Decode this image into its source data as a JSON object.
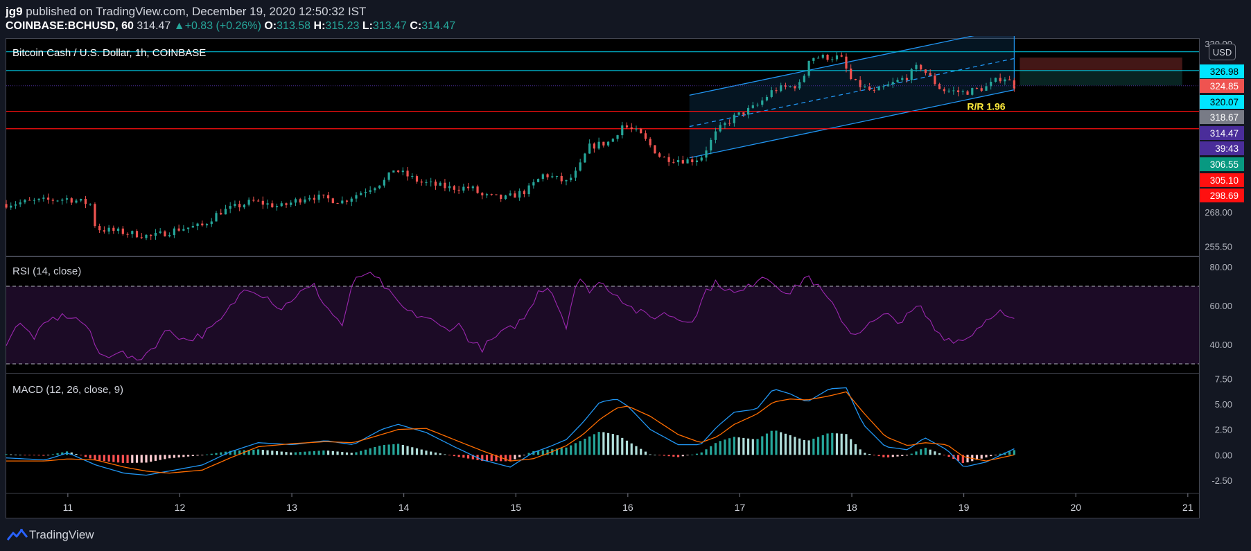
{
  "header": {
    "author": "jg9",
    "published_text": "published on TradingView.com, December 19, 2020 12:50:32 IST",
    "symbol": "COINBASE:BCHUSD, 60",
    "last": "314.47",
    "change": "+0.83 (+0.26%)",
    "o_label": "O:",
    "o_value": "313.58",
    "h_label": "H:",
    "h_value": "315.23",
    "l_label": "L:",
    "l_value": "313.47",
    "c_label": "C:",
    "c_value": "314.47"
  },
  "main_pane": {
    "title": "Bitcoin Cash / U.S. Dollar, 1h, COINBASE",
    "currency": "USD",
    "axis_ticks": [
      "330.00",
      "268.00",
      "255.50"
    ],
    "price_labels": [
      {
        "text": "326.98",
        "bg": "#00e5ff",
        "fg": "#000000"
      },
      {
        "text": "324.85",
        "bg": "#ef5350",
        "fg": "#ffffff"
      },
      {
        "text": "320.07",
        "bg": "#00e5ff",
        "fg": "#000000"
      },
      {
        "text": "318.67",
        "bg": "#787b86",
        "fg": "#ffffff"
      },
      {
        "text": "314.47",
        "bg": "#4a2d9a",
        "fg": "#ffffff"
      },
      {
        "text": "39:43",
        "bg": "#4a2d9a",
        "fg": "#ffffff"
      },
      {
        "text": "306.55",
        "bg": "#089981",
        "fg": "#ffffff"
      },
      {
        "text": "305.10",
        "bg": "#ff1010",
        "fg": "#ffffff"
      },
      {
        "text": "298.69",
        "bg": "#ff1010",
        "fg": "#ffffff"
      }
    ],
    "rr_label": "R/R 1.96"
  },
  "rsi_pane": {
    "title": "RSI (14, close)",
    "axis_ticks": [
      "80.00",
      "60.00",
      "40.00"
    ]
  },
  "macd_pane": {
    "title": "MACD (12, 26, close, 9)",
    "axis_ticks": [
      "7.50",
      "5.00",
      "2.50",
      "0.00",
      "-2.50"
    ]
  },
  "time_axis": {
    "ticks": [
      "11",
      "12",
      "13",
      "14",
      "15",
      "16",
      "17",
      "18",
      "19",
      "20",
      "21"
    ]
  },
  "footer": {
    "brand": "TradingView"
  },
  "colors": {
    "background": "#131722",
    "bull": "#26a69a",
    "bear": "#ef5350",
    "channel": "#2196f3",
    "support_cyan": "#00bcd4",
    "resistance_red": "#ff1010",
    "rsi": "#9c27b0",
    "macd": "#2196f3",
    "signal": "#ff6d00",
    "rr_text": "#ffeb3b"
  },
  "chart_data": [
    {
      "type": "candlestick",
      "title": "Bitcoin Cash / U.S. Dollar, 1h, COINBASE",
      "x_ticks": [
        "11",
        "12",
        "13",
        "14",
        "15",
        "16",
        "17",
        "18",
        "19",
        "20",
        "21"
      ],
      "x_domain_days": [
        10.45,
        21.1
      ],
      "ylim": [
        252,
        332
      ],
      "close_path": [
        {
          "day": 10.45,
          "close": 271
        },
        {
          "day": 10.7,
          "close": 272
        },
        {
          "day": 11.0,
          "close": 273
        },
        {
          "day": 11.2,
          "close": 271
        },
        {
          "day": 11.25,
          "close": 262
        },
        {
          "day": 11.6,
          "close": 260
        },
        {
          "day": 11.75,
          "close": 259
        },
        {
          "day": 12.0,
          "close": 262
        },
        {
          "day": 12.2,
          "close": 263
        },
        {
          "day": 12.35,
          "close": 268
        },
        {
          "day": 12.65,
          "close": 272
        },
        {
          "day": 12.9,
          "close": 270
        },
        {
          "day": 13.15,
          "close": 274
        },
        {
          "day": 13.45,
          "close": 272
        },
        {
          "day": 13.65,
          "close": 276
        },
        {
          "day": 13.85,
          "close": 280
        },
        {
          "day": 13.9,
          "close": 284
        },
        {
          "day": 14.15,
          "close": 279
        },
        {
          "day": 14.4,
          "close": 277
        },
        {
          "day": 14.6,
          "close": 277
        },
        {
          "day": 14.7,
          "close": 274
        },
        {
          "day": 14.9,
          "close": 273
        },
        {
          "day": 15.1,
          "close": 276
        },
        {
          "day": 15.25,
          "close": 282
        },
        {
          "day": 15.45,
          "close": 279
        },
        {
          "day": 15.55,
          "close": 283
        },
        {
          "day": 15.65,
          "close": 292
        },
        {
          "day": 15.85,
          "close": 294
        },
        {
          "day": 15.95,
          "close": 300
        },
        {
          "day": 16.1,
          "close": 297
        },
        {
          "day": 16.3,
          "close": 288
        },
        {
          "day": 16.55,
          "close": 287
        },
        {
          "day": 16.65,
          "close": 288
        },
        {
          "day": 16.8,
          "close": 298
        },
        {
          "day": 16.95,
          "close": 303
        },
        {
          "day": 17.15,
          "close": 307
        },
        {
          "day": 17.3,
          "close": 313
        },
        {
          "day": 17.55,
          "close": 315
        },
        {
          "day": 17.62,
          "close": 325
        },
        {
          "day": 17.9,
          "close": 325
        },
        {
          "day": 18.0,
          "close": 316
        },
        {
          "day": 18.2,
          "close": 312
        },
        {
          "day": 18.5,
          "close": 318
        },
        {
          "day": 18.6,
          "close": 322
        },
        {
          "day": 18.8,
          "close": 313
        },
        {
          "day": 19.0,
          "close": 312
        },
        {
          "day": 19.2,
          "close": 314
        },
        {
          "day": 19.35,
          "close": 318
        },
        {
          "day": 19.45,
          "close": 314.47
        }
      ],
      "horizontal_levels": [
        {
          "price": 326.98,
          "color": "cyan"
        },
        {
          "price": 320.07,
          "color": "cyan"
        },
        {
          "price": 305.1,
          "color": "red"
        },
        {
          "price": 298.69,
          "color": "red"
        }
      ],
      "ascending_channel": {
        "start_day": 16.55,
        "end_day": 19.45,
        "lower": [
          288,
          313
        ],
        "upper": [
          311,
          336
        ]
      },
      "long_position": {
        "start_day": 19.5,
        "end_day": 20.95,
        "entry": 314.47,
        "target": 324.85,
        "stop": 306.55,
        "rr_ratio": "R/R 1.96"
      }
    },
    {
      "type": "line",
      "title": "RSI (14, close)",
      "ylim": [
        25,
        85
      ],
      "bands": [
        30,
        70
      ],
      "series": [
        {
          "x": [
            10.45,
            10.55,
            10.7,
            10.85,
            11.0,
            11.15,
            11.3,
            11.45,
            11.6,
            11.75,
            11.9,
            12.05,
            12.2,
            12.35,
            12.5,
            12.6,
            12.8,
            12.9,
            13.05,
            13.2,
            13.3,
            13.45,
            13.55,
            13.65,
            13.8,
            13.9,
            14.05,
            14.2,
            14.35,
            14.5,
            14.6,
            14.7,
            14.85,
            14.95,
            15.1,
            15.2,
            15.3,
            15.45,
            15.55,
            15.65,
            15.75,
            15.9,
            16.05,
            16.2,
            16.35,
            16.5,
            16.6,
            16.7,
            16.8,
            16.95,
            17.05,
            17.2,
            17.35,
            17.45,
            17.6,
            17.75,
            17.9,
            18.0,
            18.15,
            18.3,
            18.45,
            18.6,
            18.75,
            18.85,
            19.0,
            19.15,
            19.3,
            19.4,
            19.45
          ],
          "y": [
            41,
            51,
            44,
            53,
            55,
            51,
            33,
            37,
            31,
            38,
            48,
            42,
            45,
            51,
            63,
            70,
            64,
            58,
            66,
            70,
            60,
            50,
            72,
            77,
            72,
            64,
            56,
            54,
            48,
            50,
            41,
            38,
            45,
            48,
            55,
            68,
            70,
            50,
            74,
            68,
            72,
            66,
            58,
            54,
            56,
            52,
            54,
            68,
            72,
            66,
            68,
            76,
            70,
            66,
            76,
            66,
            54,
            45,
            50,
            55,
            52,
            60,
            47,
            43,
            42,
            50,
            58,
            53,
            52
          ]
        }
      ]
    },
    {
      "type": "line+bar",
      "title": "MACD (12, 26, close, 9)",
      "ylim": [
        -3.8,
        8.0
      ],
      "series": [
        {
          "name": "MACD",
          "x": [
            10.45,
            10.8,
            11.0,
            11.25,
            11.5,
            11.7,
            11.9,
            12.2,
            12.45,
            12.7,
            13.0,
            13.3,
            13.55,
            13.8,
            13.95,
            14.2,
            14.45,
            14.7,
            14.95,
            15.15,
            15.3,
            15.45,
            15.6,
            15.75,
            15.9,
            16.0,
            16.2,
            16.45,
            16.65,
            16.8,
            16.95,
            17.15,
            17.3,
            17.45,
            17.6,
            17.8,
            17.95,
            18.1,
            18.3,
            18.5,
            18.65,
            18.85,
            19.0,
            19.2,
            19.45
          ],
          "y": [
            -0.3,
            -0.5,
            0.2,
            -1.0,
            -1.8,
            -2.0,
            -1.6,
            -1.0,
            0.3,
            1.2,
            1.0,
            1.4,
            1.0,
            2.5,
            3.0,
            2.2,
            0.8,
            -0.5,
            -1.2,
            0.2,
            0.8,
            1.5,
            3.2,
            5.2,
            5.5,
            4.8,
            2.5,
            1.0,
            1.0,
            2.8,
            4.2,
            4.5,
            6.5,
            6.0,
            5.2,
            6.5,
            6.6,
            3.0,
            0.8,
            0.5,
            1.7,
            0.5,
            -1.2,
            -0.7,
            0.6
          ]
        },
        {
          "name": "Signal",
          "x": [
            10.45,
            10.8,
            11.0,
            11.25,
            11.5,
            11.7,
            11.9,
            12.2,
            12.45,
            12.7,
            13.0,
            13.3,
            13.55,
            13.8,
            13.95,
            14.2,
            14.45,
            14.7,
            14.95,
            15.15,
            15.3,
            15.45,
            15.6,
            15.75,
            15.9,
            16.0,
            16.2,
            16.45,
            16.65,
            16.8,
            16.95,
            17.15,
            17.3,
            17.45,
            17.6,
            17.8,
            17.95,
            18.1,
            18.3,
            18.5,
            18.65,
            18.85,
            19.0,
            19.2,
            19.45
          ],
          "y": [
            -0.6,
            -0.6,
            -0.4,
            -0.5,
            -1.2,
            -1.6,
            -1.8,
            -1.5,
            -0.3,
            0.8,
            1.1,
            1.3,
            1.2,
            2.0,
            2.5,
            2.6,
            1.5,
            0.4,
            -0.6,
            -0.4,
            0.2,
            0.9,
            2.0,
            3.5,
            4.6,
            4.8,
            3.8,
            2.0,
            1.2,
            1.8,
            3.0,
            4.0,
            5.2,
            5.5,
            5.4,
            5.8,
            6.2,
            4.2,
            1.8,
            0.9,
            1.2,
            1.0,
            -0.2,
            -0.6,
            0.0
          ]
        }
      ]
    }
  ]
}
